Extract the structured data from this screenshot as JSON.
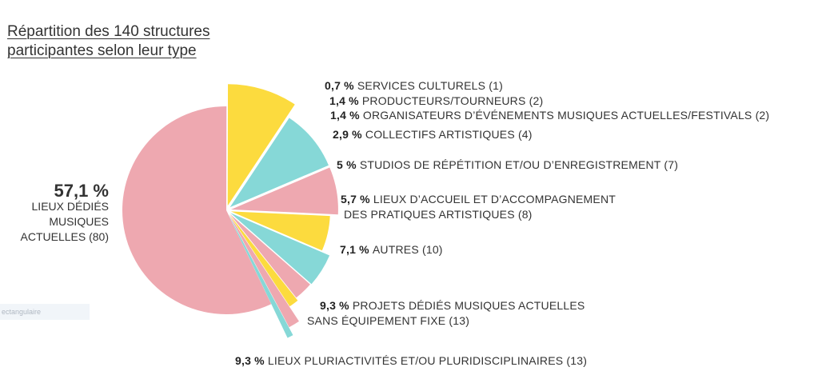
{
  "title": {
    "line1": "Répartition des 140 structures",
    "line2": "participantes selon leur type"
  },
  "overlay_tag": "ectangulaire",
  "chart_data": {
    "type": "pie",
    "title": "Répartition des 140 structures participantes selon leur type",
    "total": 140,
    "slices": [
      {
        "percent_label": "57,1 %",
        "lines": [
          "LIEUX DÉDIÉS",
          "MUSIQUES",
          "ACTUELLES (80)"
        ],
        "value": 80,
        "percent": 57.1,
        "color": "#eea8b0"
      },
      {
        "percent_label": "9,3 %",
        "lines": [
          "LIEUX PLURIACTIVITÉS ET/OU PLURIDISCIPLINAIRES (13)"
        ],
        "value": 13,
        "percent": 9.3,
        "color": "#fcdb3e"
      },
      {
        "percent_label": "9,3 %",
        "lines": [
          "PROJETS DÉDIÉS MUSIQUES ACTUELLES",
          "SANS ÉQUIPEMENT FIXE (13)"
        ],
        "value": 13,
        "percent": 9.3,
        "color": "#86d8d7"
      },
      {
        "percent_label": "7,1 %",
        "lines": [
          "AUTRES (10)"
        ],
        "value": 10,
        "percent": 7.1,
        "color": "#eea8b0"
      },
      {
        "percent_label": "5,7 %",
        "lines": [
          "LIEUX D’ACCUEIL ET D’ACCOMPAGNEMENT",
          "DES PRATIQUES ARTISTIQUES (8)"
        ],
        "value": 8,
        "percent": 5.7,
        "color": "#fcdb3e"
      },
      {
        "percent_label": "5 %",
        "lines": [
          "STUDIOS DE RÉPÉTITION ET/OU D’ENREGISTREMENT (7)"
        ],
        "value": 7,
        "percent": 5.0,
        "color": "#86d8d7"
      },
      {
        "percent_label": "2,9 %",
        "lines": [
          "COLLECTIFS ARTISTIQUES (4)"
        ],
        "value": 4,
        "percent": 2.9,
        "color": "#eea8b0"
      },
      {
        "percent_label": "1,4 %",
        "lines": [
          "ORGANISATEURS D’ÉVÉNEMENTS MUSIQUES ACTUELLES/FESTIVALS (2)"
        ],
        "value": 2,
        "percent": 1.4,
        "color": "#fcdb3e"
      },
      {
        "percent_label": "1,4 %",
        "lines": [
          "PRODUCTEURS/TOURNEURS (2)"
        ],
        "value": 2,
        "percent": 1.4,
        "color": "#eea8b0"
      },
      {
        "percent_label": "0,7 %",
        "lines": [
          "SERVICES CULTURELS (1)"
        ],
        "value": 1,
        "percent": 0.7,
        "color": "#86d8d7"
      }
    ]
  }
}
